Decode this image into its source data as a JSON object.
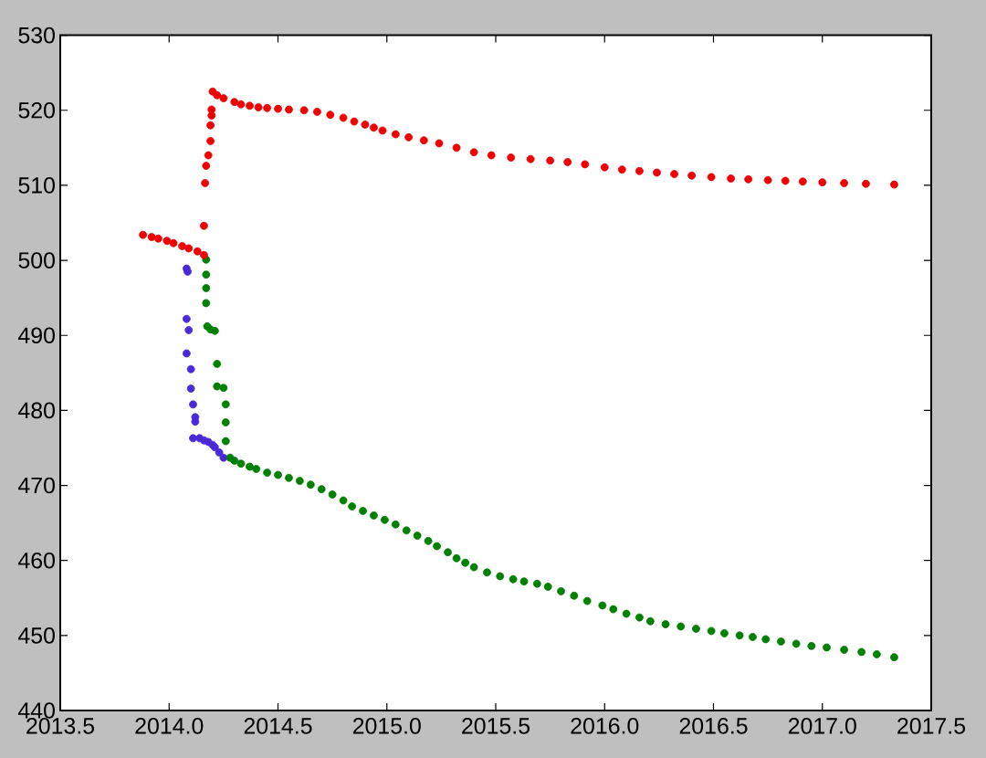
{
  "chart_data": {
    "type": "scatter",
    "xlim": [
      2013.5,
      2017.5
    ],
    "ylim": [
      440,
      530
    ],
    "xticks": [
      2013.5,
      {
        "value": 2014,
        "label": "2014.0"
      },
      2014.5,
      {
        "value": 2015,
        "label": "2015.0"
      },
      2015.5,
      {
        "value": 2016,
        "label": "2016.0"
      },
      2016.5,
      {
        "value": 2017,
        "label": "2017.0"
      },
      2017.5
    ],
    "yticks": [
      440,
      450,
      460,
      470,
      480,
      490,
      500,
      510,
      520,
      530
    ],
    "marker": "circle",
    "series": [
      {
        "color": "#4a2ad8",
        "x": [
          2014.08,
          2014.085,
          2014.08,
          2014.09,
          2014.08,
          2014.1,
          2014.1,
          2014.11,
          2014.12,
          2014.12,
          2014.11,
          2014.14,
          2014.16,
          2014.18,
          2014.2,
          2014.21,
          2014.23,
          2014.25
        ],
        "values": [
          498.9,
          498.5,
          492.2,
          490.7,
          487.6,
          485.5,
          482.9,
          480.8,
          479.1,
          478.5,
          476.3,
          476.3,
          476.0,
          475.8,
          475.4,
          475.1,
          474.4,
          473.7
        ]
      },
      {
        "color": "#008000",
        "x": [
          2014.17,
          2014.17,
          2014.17,
          2014.17,
          2014.175,
          2014.19,
          2014.21,
          2014.22,
          2014.22,
          2014.25,
          2014.26,
          2014.26,
          2014.26,
          2014.28,
          2014.3,
          2014.33,
          2014.37,
          2014.4,
          2014.45,
          2014.5,
          2014.55,
          2014.6,
          2014.65,
          2014.7,
          2014.75,
          2014.8,
          2014.84,
          2014.89,
          2014.94,
          2014.99,
          2015.04,
          2015.09,
          2015.14,
          2015.19,
          2015.23,
          2015.28,
          2015.32,
          2015.36,
          2015.4,
          2015.46,
          2015.52,
          2015.58,
          2015.63,
          2015.69,
          2015.74,
          2015.8,
          2015.86,
          2015.92,
          2015.99,
          2016.04,
          2016.1,
          2016.16,
          2016.21,
          2016.28,
          2016.35,
          2016.42,
          2016.49,
          2016.55,
          2016.62,
          2016.68,
          2016.74,
          2016.81,
          2016.88,
          2016.95,
          2017.02,
          2017.1,
          2017.18,
          2017.25,
          2017.33
        ],
        "values": [
          500.1,
          498.1,
          496.3,
          494.3,
          491.2,
          490.8,
          490.6,
          486.2,
          483.2,
          483.0,
          480.8,
          478.4,
          475.9,
          473.7,
          473.3,
          472.9,
          472.5,
          472.2,
          471.7,
          471.4,
          471.0,
          470.6,
          470.1,
          469.5,
          468.8,
          468.0,
          467.2,
          466.6,
          466.0,
          465.4,
          464.8,
          464.0,
          463.3,
          462.6,
          461.9,
          461.1,
          460.3,
          459.7,
          459.1,
          458.4,
          457.9,
          457.5,
          457.2,
          456.9,
          456.5,
          455.9,
          455.3,
          454.6,
          454.0,
          453.5,
          452.9,
          452.4,
          451.9,
          451.5,
          451.2,
          450.9,
          450.6,
          450.3,
          450.0,
          449.8,
          449.5,
          449.2,
          448.9,
          448.6,
          448.4,
          448.1,
          447.8,
          447.5,
          447.1
        ]
      },
      {
        "color": "#ee0000",
        "x": [
          2013.88,
          2013.92,
          2013.95,
          2013.99,
          2014.02,
          2014.06,
          2014.09,
          2014.13,
          2014.16,
          2014.16,
          2014.165,
          2014.17,
          2014.18,
          2014.19,
          2014.19,
          2014.195,
          2014.195,
          2014.2,
          2014.22,
          2014.25,
          2014.3,
          2014.33,
          2014.37,
          2014.41,
          2014.45,
          2014.5,
          2014.55,
          2014.62,
          2014.68,
          2014.74,
          2014.8,
          2014.85,
          2014.9,
          2014.94,
          2014.98,
          2015.04,
          2015.1,
          2015.17,
          2015.24,
          2015.32,
          2015.4,
          2015.48,
          2015.57,
          2015.66,
          2015.75,
          2015.83,
          2015.91,
          2016.0,
          2016.08,
          2016.16,
          2016.24,
          2016.32,
          2016.4,
          2016.49,
          2016.58,
          2016.66,
          2016.75,
          2016.83,
          2016.91,
          2017.0,
          2017.1,
          2017.2,
          2017.33
        ],
        "values": [
          503.4,
          503.1,
          502.9,
          502.6,
          502.3,
          501.9,
          501.6,
          501.2,
          500.7,
          504.6,
          510.3,
          512.6,
          514.0,
          515.9,
          518.0,
          519.3,
          520.1,
          522.5,
          522.0,
          521.6,
          521.1,
          520.8,
          520.6,
          520.4,
          520.3,
          520.2,
          520.1,
          520.0,
          519.8,
          519.4,
          519.0,
          518.5,
          518.1,
          517.7,
          517.3,
          516.8,
          516.4,
          516.0,
          515.6,
          515.0,
          514.4,
          514.0,
          513.7,
          513.5,
          513.3,
          513.1,
          512.8,
          512.4,
          512.1,
          511.9,
          511.7,
          511.5,
          511.3,
          511.1,
          510.9,
          510.8,
          510.7,
          510.6,
          510.5,
          510.4,
          510.3,
          510.2,
          510.1
        ]
      }
    ]
  }
}
